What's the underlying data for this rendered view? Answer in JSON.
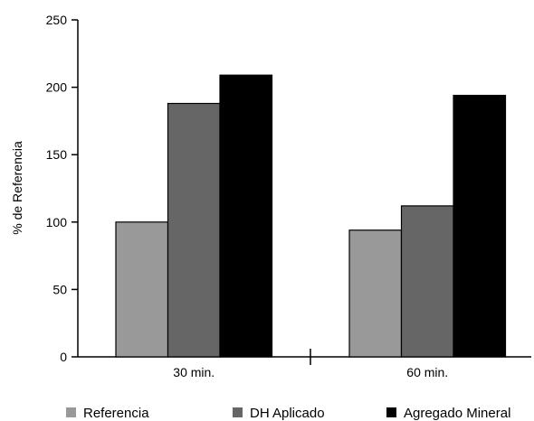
{
  "chart_data": {
    "type": "bar",
    "title": "",
    "xlabel": "",
    "ylabel": "% de Referencia",
    "ylim": [
      0,
      250
    ],
    "yticks": [
      0,
      50,
      100,
      150,
      200,
      250
    ],
    "categories": [
      "30 min.",
      "60 min."
    ],
    "series": [
      {
        "name": "Referencia",
        "values": [
          100,
          94
        ],
        "color": "#999999"
      },
      {
        "name": "DH Aplicado",
        "values": [
          188,
          112
        ],
        "color": "#666666"
      },
      {
        "name": "Agregado Mineral",
        "values": [
          209,
          194
        ],
        "color": "#000000"
      }
    ],
    "grid": false,
    "legend_position": "bottom"
  }
}
